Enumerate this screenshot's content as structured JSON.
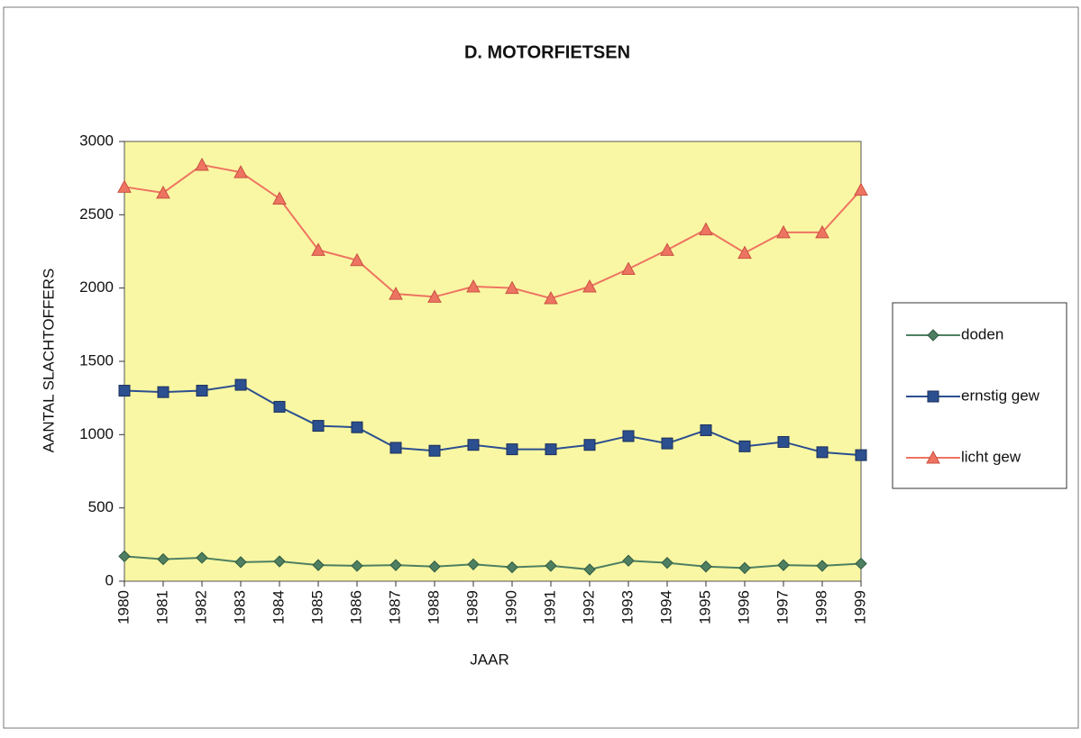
{
  "chart_data": {
    "type": "line",
    "title": "D. MOTORFIETSEN",
    "x_label": "JAAR",
    "y_label": "AANTAL SLACHTOFFERS",
    "categories": [
      "1980",
      "1981",
      "1982",
      "1983",
      "1984",
      "1985",
      "1986",
      "1987",
      "1988",
      "1989",
      "1990",
      "1991",
      "1992",
      "1993",
      "1994",
      "1995",
      "1996",
      "1997",
      "1998",
      "1999"
    ],
    "series": [
      {
        "name": "doden",
        "color": "#4f7f62",
        "marker": "diamond",
        "values": [
          170,
          150,
          160,
          130,
          135,
          110,
          105,
          110,
          100,
          115,
          95,
          105,
          80,
          140,
          125,
          100,
          90,
          110,
          105,
          120
        ]
      },
      {
        "name": "ernstig gew",
        "color": "#2c4f8f",
        "marker": "square",
        "values": [
          1300,
          1290,
          1300,
          1340,
          1190,
          1060,
          1050,
          910,
          890,
          930,
          900,
          900,
          930,
          990,
          940,
          1030,
          920,
          950,
          880,
          860
        ]
      },
      {
        "name": "licht gew",
        "color": "#ee7462",
        "marker": "triangle",
        "values": [
          2690,
          2650,
          2840,
          2790,
          2610,
          2260,
          2190,
          1960,
          1940,
          2010,
          2000,
          1930,
          2010,
          2130,
          2260,
          2400,
          2240,
          2380,
          2380,
          2670
        ]
      }
    ],
    "ylim": [
      0,
      3000
    ],
    "yticks": [
      0,
      500,
      1000,
      1500,
      2000,
      2500,
      3000
    ],
    "grid": false,
    "legend": "right",
    "plot_background": "#f9f7a3"
  }
}
